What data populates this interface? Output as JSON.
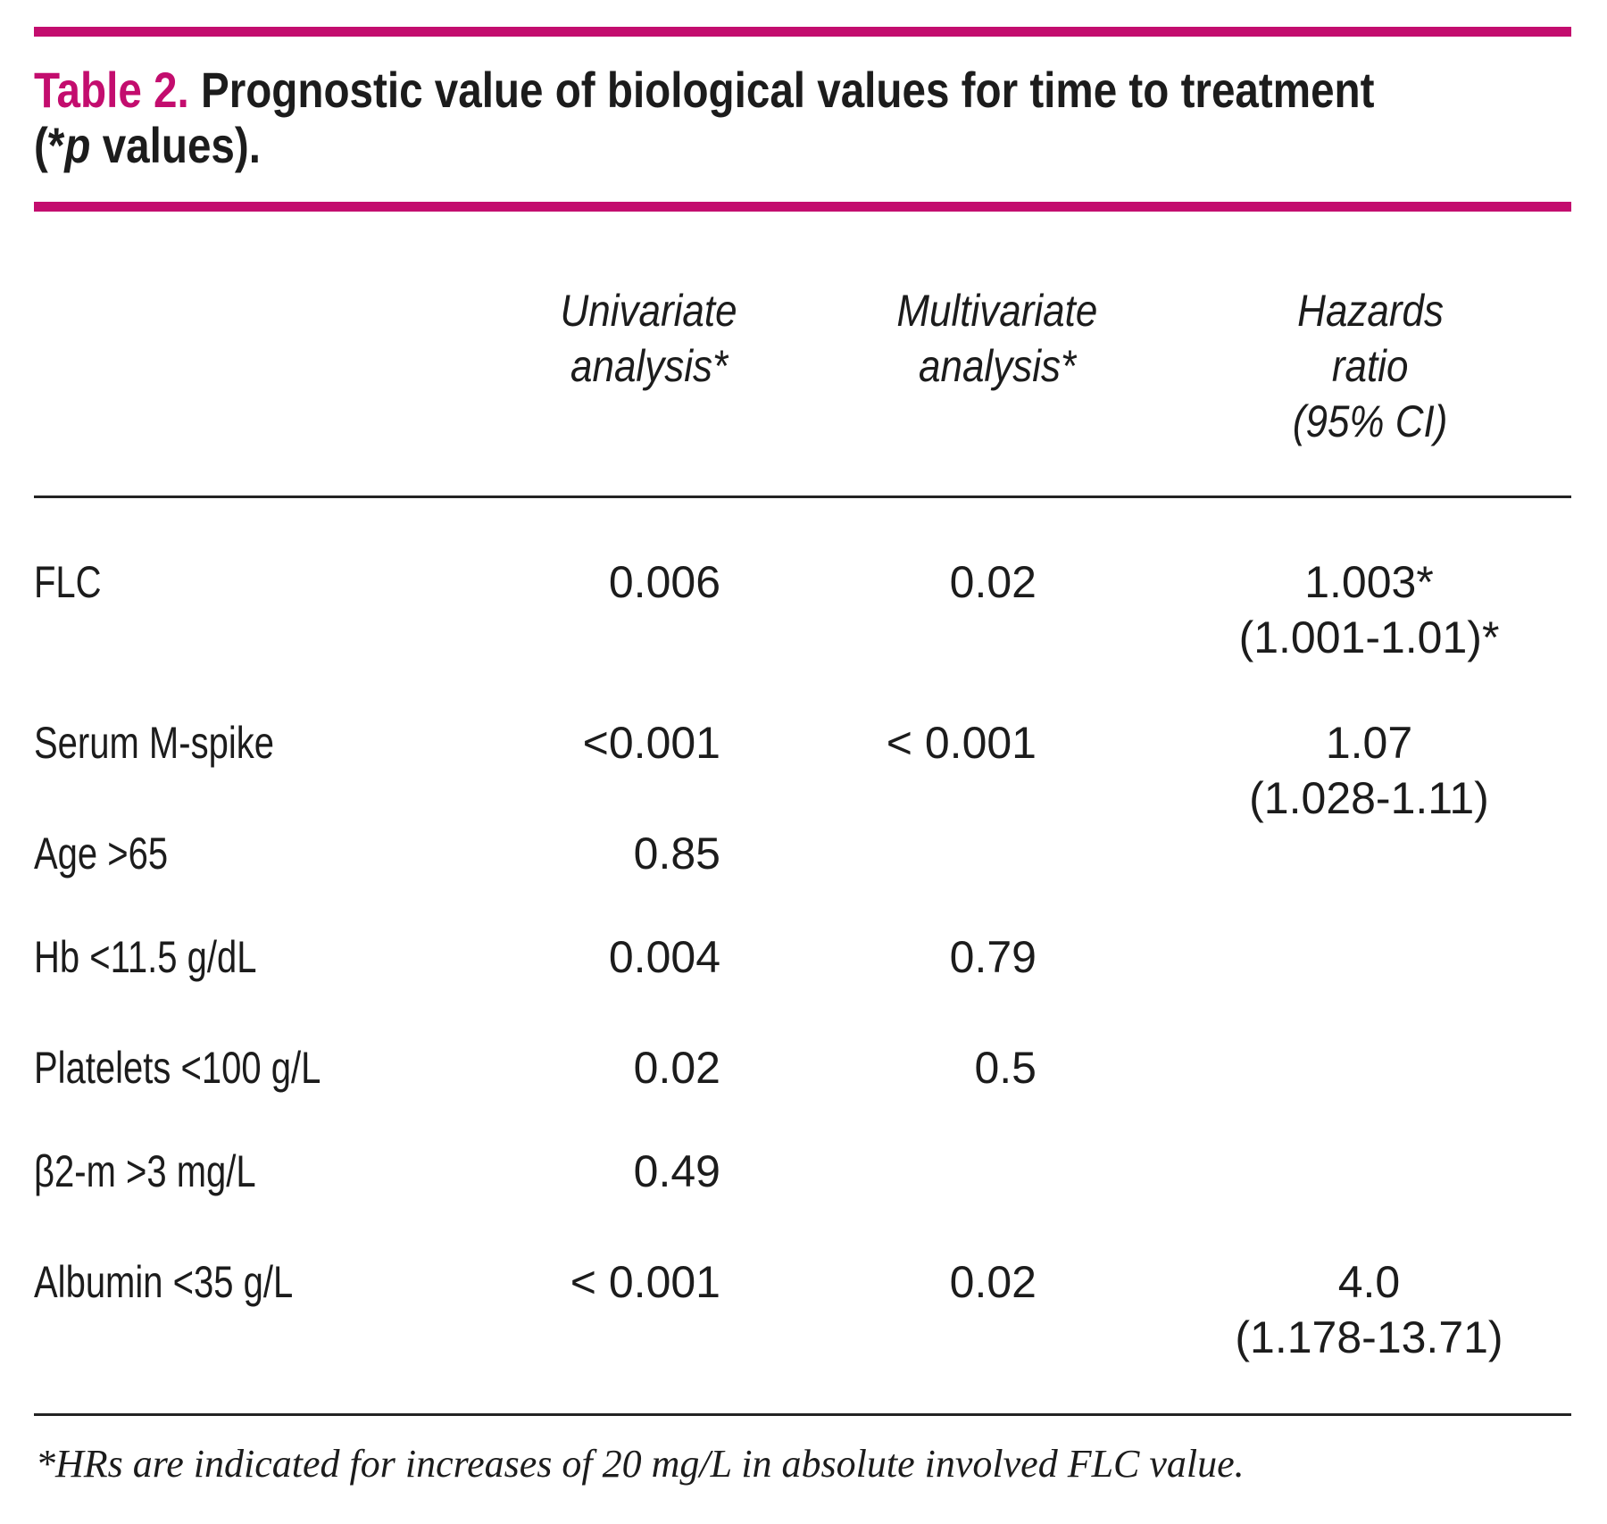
{
  "colors": {
    "accent": "#c30d6e",
    "text": "#1c1c1c"
  },
  "title": {
    "label": "Table 2.",
    "line1_rest": " Prognostic value of biological values for time to treatment",
    "line2_open": "(*",
    "line2_p": "p",
    "line2_close": " values)."
  },
  "headers": {
    "col2_line1": "Univariate",
    "col2_line2": "analysis*",
    "col3_line1": "Multivariate",
    "col3_line2": "analysis*",
    "col4_line1": "Hazards",
    "col4_line2": "ratio",
    "col4_line3": "(95% CI)"
  },
  "table": {
    "rows": [
      {
        "label": "FLC",
        "univariate": "0.006",
        "multivariate": "0.02",
        "hazards_line1": "1.003*",
        "hazards_line2": "(1.001-1.01)*"
      },
      {
        "label": "Serum M-spike",
        "univariate": "<0.001",
        "multivariate": "< 0.001",
        "hazards_line1": "1.07",
        "hazards_line2": "(1.028-1.11)"
      },
      {
        "label": "Age >65",
        "univariate": "0.85",
        "multivariate": "",
        "hazards_line1": "",
        "hazards_line2": ""
      },
      {
        "label": "Hb <11.5 g/dL",
        "univariate": "0.004",
        "multivariate": "0.79",
        "hazards_line1": "",
        "hazards_line2": ""
      },
      {
        "label": "Platelets <100 g/L",
        "univariate": "0.02",
        "multivariate": "0.5",
        "hazards_line1": "",
        "hazards_line2": ""
      },
      {
        "label": "β2-m >3 mg/L",
        "univariate": "0.49",
        "multivariate": "",
        "hazards_line1": "",
        "hazards_line2": ""
      },
      {
        "label": "Albumin <35 g/L",
        "univariate": "< 0.001",
        "multivariate": "0.02",
        "hazards_line1": "4.0",
        "hazards_line2": "(1.178-13.71)"
      }
    ]
  },
  "footnote": "*HRs are indicated for increases of 20 mg/L in absolute involved FLC value."
}
